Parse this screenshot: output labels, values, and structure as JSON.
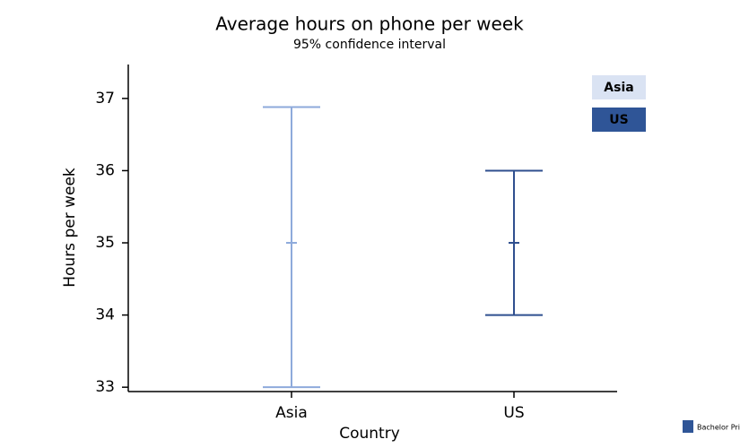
{
  "chart_data": {
    "type": "errorbar",
    "title": "Average hours on phone per week",
    "subtitle": "95% confidence interval",
    "x_label": "Country",
    "y_label": "Hours per week",
    "categories": [
      "Asia",
      "US"
    ],
    "values": [
      35,
      35
    ],
    "lower": [
      33,
      34
    ],
    "upper": [
      36.88,
      36
    ],
    "colors": [
      "#8eaadb",
      "#2f4f8f"
    ],
    "legend_fills": [
      "#dae3f3",
      "#2f5597"
    ],
    "legend_text_colors": [
      "#000000",
      "#ffffff"
    ],
    "ylim": [
      32.94,
      37.47
    ],
    "yticks": [
      33,
      34,
      35,
      36,
      37
    ],
    "grid": false,
    "legend": "upper right",
    "watermark": "Bachelor Print"
  }
}
